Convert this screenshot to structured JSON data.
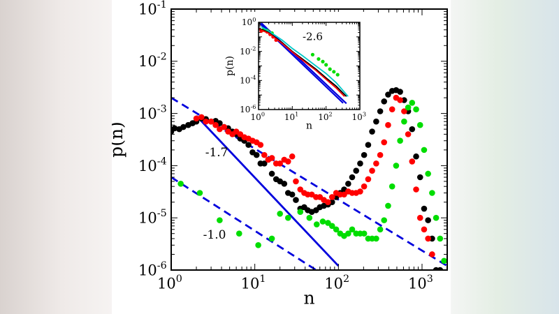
{
  "chart_data": [
    {
      "type": "scatter",
      "xscale": "log",
      "yscale": "log",
      "xlim": [
        1,
        2000
      ],
      "ylim": [
        1e-06,
        0.1
      ],
      "xlabel": "n",
      "ylabel": "p(n)",
      "x_ticks": [
        {
          "value": 1,
          "base": "10",
          "exp": "0"
        },
        {
          "value": 10,
          "base": "10",
          "exp": "1"
        },
        {
          "value": 100,
          "base": "10",
          "exp": "2"
        },
        {
          "value": 1000,
          "base": "10",
          "exp": "3"
        }
      ],
      "y_ticks": [
        {
          "value": 1e-06,
          "base": "10",
          "exp": "-6"
        },
        {
          "value": 1e-05,
          "base": "10",
          "exp": "-5"
        },
        {
          "value": 0.0001,
          "base": "10",
          "exp": "-4"
        },
        {
          "value": 0.001,
          "base": "10",
          "exp": "-3"
        },
        {
          "value": 0.01,
          "base": "10",
          "exp": "-2"
        },
        {
          "value": 0.1,
          "base": "10",
          "exp": "-1"
        }
      ],
      "series": [
        {
          "color": "#000000",
          "points": [
            [
              1.0,
              0.00045
            ],
            [
              1.1,
              0.00052
            ],
            [
              1.25,
              0.0005
            ],
            [
              1.4,
              0.00055
            ],
            [
              1.6,
              0.0006
            ],
            [
              1.8,
              0.00065
            ],
            [
              2.0,
              0.0007
            ],
            [
              2.3,
              0.0008
            ],
            [
              2.6,
              0.00078
            ],
            [
              3.0,
              0.0007
            ],
            [
              3.4,
              0.00072
            ],
            [
              3.8,
              0.00065
            ],
            [
              4.3,
              0.00055
            ],
            [
              4.8,
              0.00052
            ],
            [
              5.4,
              0.00045
            ],
            [
              6.0,
              0.0004
            ],
            [
              6.7,
              0.00033
            ],
            [
              7.5,
              0.0003
            ],
            [
              8.4,
              0.00025
            ],
            [
              9.4,
              0.00018
            ],
            [
              10.5,
              0.00016
            ],
            [
              11.7,
              0.00011
            ],
            [
              13,
              0.00011
            ],
            [
              14.5,
              0.00013
            ],
            [
              16,
              7e-05
            ],
            [
              18,
              5.5e-05
            ],
            [
              20,
              5e-05
            ],
            [
              22.5,
              4.5e-05
            ],
            [
              25,
              3e-05
            ],
            [
              28,
              2.8e-05
            ],
            [
              31,
              2.2e-05
            ],
            [
              35,
              1.5e-05
            ],
            [
              39,
              1.6e-05
            ],
            [
              43,
              1.4e-05
            ],
            [
              48,
              1.3e-05
            ],
            [
              54,
              1.4e-05
            ],
            [
              60,
              1.6e-05
            ],
            [
              67,
              1.7e-05
            ],
            [
              75,
              1.8e-05
            ],
            [
              84,
              2e-05
            ],
            [
              94,
              2.5e-05
            ],
            [
              105,
              3e-05
            ],
            [
              117,
              3.5e-05
            ],
            [
              131,
              4.5e-05
            ],
            [
              146,
              6e-05
            ],
            [
              163,
              8e-05
            ],
            [
              182,
              0.00011
            ],
            [
              203,
              0.00016
            ],
            [
              227,
              0.00025
            ],
            [
              253,
              0.00045
            ],
            [
              283,
              0.0007
            ],
            [
              316,
              0.0011
            ],
            [
              352,
              0.0017
            ],
            [
              393,
              0.0023
            ],
            [
              439,
              0.0027
            ],
            [
              490,
              0.0028
            ],
            [
              547,
              0.0026
            ],
            [
              611,
              0.0018
            ],
            [
              682,
              0.0011
            ],
            [
              761,
              0.0005
            ],
            [
              850,
              0.00015
            ],
            [
              949,
              6e-05
            ],
            [
              1059,
              1.5e-05
            ],
            [
              1182,
              9e-06
            ],
            [
              1320,
              4e-06
            ],
            [
              1473,
              1e-06
            ],
            [
              1644,
              1e-06
            ]
          ]
        },
        {
          "color": "#ff0000",
          "points": [
            [
              2.0,
              0.0008
            ],
            [
              2.3,
              0.00085
            ],
            [
              2.6,
              0.0007
            ],
            [
              3.0,
              0.0007
            ],
            [
              3.4,
              0.0006
            ],
            [
              3.8,
              0.0005
            ],
            [
              4.3,
              0.00055
            ],
            [
              4.8,
              0.00045
            ],
            [
              5.4,
              0.0004
            ],
            [
              6.0,
              0.00045
            ],
            [
              6.7,
              0.0004
            ],
            [
              7.5,
              0.00035
            ],
            [
              8.4,
              0.00033
            ],
            [
              9.4,
              0.0003
            ],
            [
              10.5,
              0.00028
            ],
            [
              11.7,
              0.00025
            ],
            [
              13,
              0.00016
            ],
            [
              14.5,
              0.00013
            ],
            [
              16,
              0.00014
            ],
            [
              18,
              0.00011
            ],
            [
              20,
              0.00011
            ],
            [
              22.5,
              0.00013
            ],
            [
              25,
              0.00012
            ],
            [
              28,
              0.00015
            ],
            [
              31,
              5e-05
            ],
            [
              35,
              3.5e-05
            ],
            [
              39,
              3e-05
            ],
            [
              43,
              2.8e-05
            ],
            [
              48,
              2.8e-05
            ],
            [
              54,
              2.5e-05
            ],
            [
              60,
              2.5e-05
            ],
            [
              67,
              2.2e-05
            ],
            [
              75,
              2e-05
            ],
            [
              84,
              2.5e-05
            ],
            [
              94,
              3e-05
            ],
            [
              105,
              2.8e-05
            ],
            [
              117,
              2.8e-05
            ],
            [
              131,
              3.2e-05
            ],
            [
              146,
              3e-05
            ],
            [
              163,
              3e-05
            ],
            [
              182,
              3.2e-05
            ],
            [
              203,
              4e-05
            ],
            [
              227,
              5.5e-05
            ],
            [
              253,
              8e-05
            ],
            [
              283,
              0.00011
            ],
            [
              316,
              0.00016
            ],
            [
              352,
              0.00028
            ],
            [
              393,
              0.0006
            ],
            [
              439,
              0.0012
            ],
            [
              490,
              0.002
            ],
            [
              547,
              0.0018
            ],
            [
              611,
              0.0011
            ],
            [
              682,
              0.0004
            ],
            [
              761,
              0.00012
            ],
            [
              850,
              3.5e-05
            ],
            [
              949,
              1e-05
            ],
            [
              1059,
              6e-06
            ],
            [
              1182,
              4e-06
            ],
            [
              1320,
              2e-06
            ]
          ]
        },
        {
          "color": "#00dd00",
          "points": [
            [
              1.3,
              4.5e-05
            ],
            [
              2.2,
              3e-05
            ],
            [
              3.8,
              9e-06
            ],
            [
              6.5,
              5e-06
            ],
            [
              11,
              3e-06
            ],
            [
              16,
              4e-06
            ],
            [
              20,
              1.2e-05
            ],
            [
              25,
              1e-05
            ],
            [
              35,
              1.3e-05
            ],
            [
              45,
              1e-05
            ],
            [
              55,
              7.5e-06
            ],
            [
              65,
              8.5e-06
            ],
            [
              75,
              8e-06
            ],
            [
              84,
              7e-06
            ],
            [
              94,
              6e-06
            ],
            [
              105,
              5e-06
            ],
            [
              117,
              4.5e-06
            ],
            [
              131,
              5e-06
            ],
            [
              146,
              6e-06
            ],
            [
              163,
              5e-06
            ],
            [
              182,
              5e-06
            ],
            [
              203,
              5e-06
            ],
            [
              227,
              4e-06
            ],
            [
              253,
              4e-06
            ],
            [
              283,
              4e-06
            ],
            [
              316,
              6e-06
            ],
            [
              352,
              9e-06
            ],
            [
              393,
              1.7e-05
            ],
            [
              439,
              4e-05
            ],
            [
              490,
              0.0001
            ],
            [
              547,
              0.0003
            ],
            [
              611,
              0.0007
            ],
            [
              682,
              0.0013
            ],
            [
              761,
              0.0016
            ],
            [
              850,
              0.0012
            ],
            [
              949,
              0.0006
            ],
            [
              1059,
              0.0002
            ],
            [
              1182,
              7e-05
            ],
            [
              1320,
              3e-05
            ],
            [
              1473,
              1e-05
            ],
            [
              1644,
              4e-06
            ],
            [
              1835,
              1.5e-06
            ]
          ]
        }
      ],
      "lines": [
        {
          "style": "dashed",
          "color": "#0000dd",
          "from": [
            1,
            0.002
          ],
          "to": [
            2000,
            1.2e-06
          ]
        },
        {
          "style": "dashed",
          "color": "#0000dd",
          "from": [
            1,
            6e-05
          ],
          "to": [
            60,
            9e-07
          ]
        },
        {
          "style": "solid",
          "color": "#0000dd",
          "from": [
            2,
            0.0009
          ],
          "to": [
            100,
            1.2e-06
          ]
        }
      ],
      "annotations": [
        {
          "text": "-1.7",
          "x": 3.5,
          "y": 0.00015
        },
        {
          "text": "-1.0",
          "x": 3.3,
          "y": 4e-06
        }
      ]
    },
    {
      "type": "line",
      "xscale": "log",
      "yscale": "log",
      "xlim": [
        1,
        1000
      ],
      "ylim": [
        1e-06,
        1
      ],
      "xlabel": "n",
      "ylabel": "p(n)",
      "x_ticks": [
        {
          "value": 1,
          "base": "10",
          "exp": "0"
        },
        {
          "value": 10,
          "base": "10",
          "exp": "1"
        },
        {
          "value": 100,
          "base": "10",
          "exp": "2"
        },
        {
          "value": 1000,
          "base": "10",
          "exp": "3"
        }
      ],
      "y_ticks": [
        {
          "value": 1e-06,
          "base": "10",
          "exp": "-6"
        },
        {
          "value": 0.0001,
          "base": "10",
          "exp": "-4"
        },
        {
          "value": 0.01,
          "base": "10",
          "exp": "-2"
        },
        {
          "value": 1,
          "base": "10",
          "exp": "0"
        }
      ],
      "annotations": [
        {
          "text": "-2.6",
          "x": 40,
          "y": 0.06
        }
      ],
      "series": [
        {
          "color": "#ff0000",
          "style": "points",
          "points": [
            [
              1.2,
              0.25
            ],
            [
              1.5,
              0.28
            ],
            [
              1.8,
              0.22
            ],
            [
              2.2,
              0.15
            ],
            [
              2.7,
              0.1
            ],
            [
              3.3,
              0.06
            ]
          ]
        },
        {
          "color": "#00dd00",
          "style": "points",
          "points": [
            [
              1.4,
              0.3
            ],
            [
              1.8,
              0.27
            ],
            [
              2.5,
              0.18
            ],
            [
              40,
              0.006
            ],
            [
              60,
              0.003
            ],
            [
              80,
              0.002
            ],
            [
              100,
              0.0012
            ],
            [
              130,
              0.0006
            ],
            [
              170,
              0.0004
            ],
            [
              220,
              0.00025
            ]
          ]
        },
        {
          "color": "#000000",
          "style": "line",
          "points": [
            [
              1,
              0.4
            ],
            [
              2,
              0.2
            ],
            [
              5,
              0.04
            ],
            [
              10,
              0.01
            ],
            [
              20,
              0.003
            ],
            [
              50,
              0.0006
            ],
            [
              100,
              0.00015
            ],
            [
              200,
              4e-05
            ],
            [
              400,
              8e-06
            ]
          ]
        },
        {
          "color": "#ff0000",
          "style": "line",
          "points": [
            [
              1,
              0.35
            ],
            [
              2,
              0.18
            ],
            [
              5,
              0.035
            ],
            [
              10,
              0.009
            ],
            [
              20,
              0.0025
            ],
            [
              50,
              0.0005
            ],
            [
              100,
              0.00012
            ],
            [
              200,
              3e-05
            ],
            [
              350,
              8e-06
            ]
          ]
        },
        {
          "color": "#00c8c8",
          "style": "line",
          "points": [
            [
              1.2,
              0.5
            ],
            [
              2,
              0.25
            ],
            [
              5,
              0.06
            ],
            [
              10,
              0.016
            ],
            [
              20,
              0.005
            ],
            [
              50,
              0.001
            ],
            [
              100,
              0.0003
            ],
            [
              200,
              7e-05
            ],
            [
              450,
              8e-06
            ]
          ]
        }
      ],
      "lines": [
        {
          "style": "solid",
          "color": "#0000dd",
          "from": [
            1,
            1
          ],
          "to": [
            320,
            2.8e-06
          ]
        },
        {
          "style": "solid",
          "color": "#0000dd",
          "from": [
            1.2,
            0.9
          ],
          "to": [
            400,
            2.6e-06
          ]
        }
      ]
    }
  ]
}
